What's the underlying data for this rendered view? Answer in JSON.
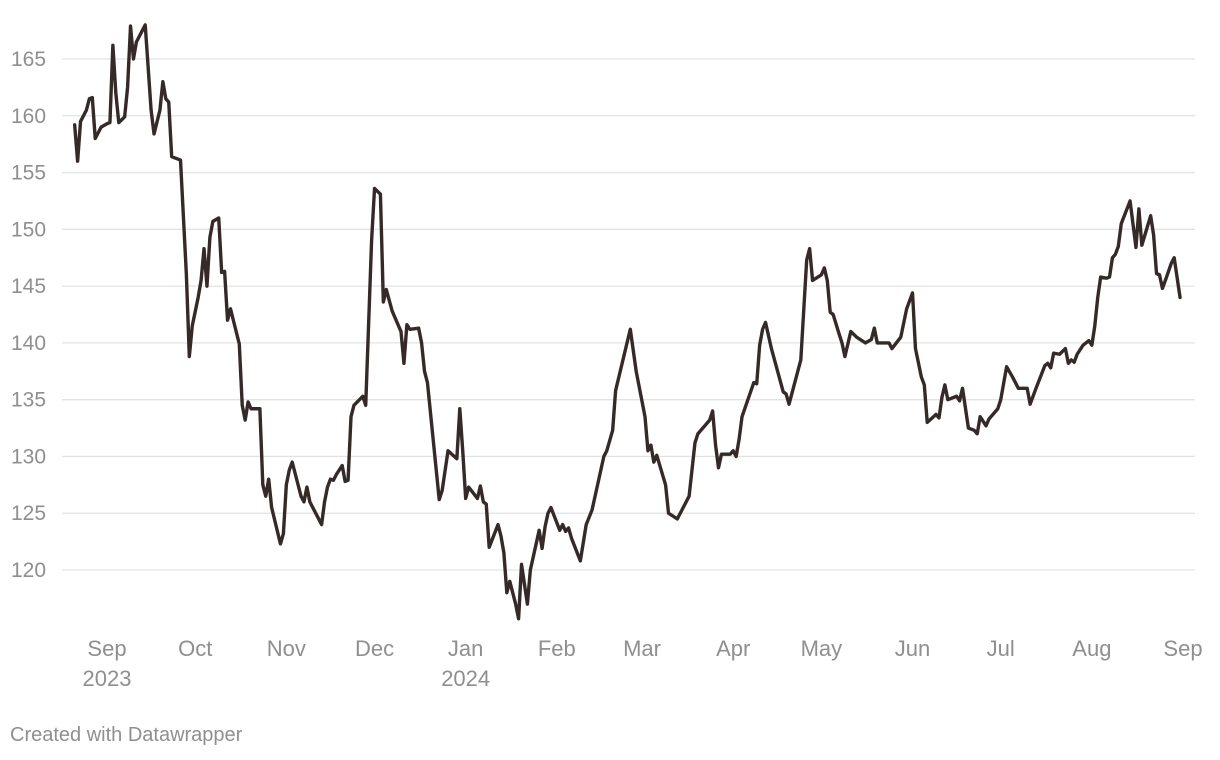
{
  "chart_data": {
    "type": "line",
    "title": "",
    "xlabel": "",
    "ylabel": "",
    "x_range": [
      "2023-08-21",
      "2024-08-30"
    ],
    "ylim": [
      115,
      168
    ],
    "y_ticks": [
      120,
      125,
      130,
      135,
      140,
      145,
      150,
      155,
      160,
      165
    ],
    "x_ticks": [
      {
        "date": "2023-09-01",
        "label": "Sep",
        "year": "2023"
      },
      {
        "date": "2023-10-01",
        "label": "Oct",
        "year": ""
      },
      {
        "date": "2023-11-01",
        "label": "Nov",
        "year": ""
      },
      {
        "date": "2023-12-01",
        "label": "Dec",
        "year": ""
      },
      {
        "date": "2024-01-01",
        "label": "Jan",
        "year": "2024"
      },
      {
        "date": "2024-02-01",
        "label": "Feb",
        "year": ""
      },
      {
        "date": "2024-03-01",
        "label": "Mar",
        "year": ""
      },
      {
        "date": "2024-04-01",
        "label": "Apr",
        "year": ""
      },
      {
        "date": "2024-05-01",
        "label": "May",
        "year": ""
      },
      {
        "date": "2024-06-01",
        "label": "Jun",
        "year": ""
      },
      {
        "date": "2024-07-01",
        "label": "Jul",
        "year": ""
      },
      {
        "date": "2024-08-01",
        "label": "Aug",
        "year": ""
      },
      {
        "date": "2024-09-01",
        "label": "Sep",
        "year": ""
      }
    ],
    "grid": true,
    "series": [
      {
        "color": "#352a27",
        "points": [
          [
            "2023-08-21",
            159.2
          ],
          [
            "2023-08-22",
            156.0
          ],
          [
            "2023-08-23",
            159.5
          ],
          [
            "2023-08-25",
            160.5
          ],
          [
            "2023-08-26",
            161.5
          ],
          [
            "2023-08-27",
            161.6
          ],
          [
            "2023-08-28",
            158.0
          ],
          [
            "2023-08-30",
            159.0
          ],
          [
            "2023-09-01",
            159.3
          ],
          [
            "2023-09-02",
            159.4
          ],
          [
            "2023-09-03",
            166.2
          ],
          [
            "2023-09-04",
            162.0
          ],
          [
            "2023-09-05",
            159.4
          ],
          [
            "2023-09-07",
            159.9
          ],
          [
            "2023-09-08",
            162.5
          ],
          [
            "2023-09-09",
            167.9
          ],
          [
            "2023-09-10",
            165.0
          ],
          [
            "2023-09-11",
            166.5
          ],
          [
            "2023-09-14",
            168.0
          ],
          [
            "2023-09-16",
            160.5
          ],
          [
            "2023-09-17",
            158.4
          ],
          [
            "2023-09-19",
            160.5
          ],
          [
            "2023-09-20",
            163.0
          ],
          [
            "2023-09-21",
            161.5
          ],
          [
            "2023-09-22",
            161.2
          ],
          [
            "2023-09-23",
            156.4
          ],
          [
            "2023-09-26",
            156.1
          ],
          [
            "2023-09-28",
            146.0
          ],
          [
            "2023-09-29",
            138.8
          ],
          [
            "2023-09-30",
            141.5
          ],
          [
            "2023-10-02",
            144.0
          ],
          [
            "2023-10-03",
            145.5
          ],
          [
            "2023-10-04",
            148.3
          ],
          [
            "2023-10-05",
            145.0
          ],
          [
            "2023-10-06",
            149.3
          ],
          [
            "2023-10-07",
            150.7
          ],
          [
            "2023-10-09",
            151.0
          ],
          [
            "2023-10-10",
            146.2
          ],
          [
            "2023-10-11",
            146.3
          ],
          [
            "2023-10-12",
            142.0
          ],
          [
            "2023-10-13",
            143.0
          ],
          [
            "2023-10-16",
            139.9
          ],
          [
            "2023-10-17",
            134.5
          ],
          [
            "2023-10-18",
            133.2
          ],
          [
            "2023-10-19",
            134.8
          ],
          [
            "2023-10-20",
            134.2
          ],
          [
            "2023-10-23",
            134.2
          ],
          [
            "2023-10-24",
            127.5
          ],
          [
            "2023-10-25",
            126.5
          ],
          [
            "2023-10-26",
            128.0
          ],
          [
            "2023-10-27",
            125.5
          ],
          [
            "2023-10-30",
            122.3
          ],
          [
            "2023-10-31",
            123.2
          ],
          [
            "2023-11-01",
            127.5
          ],
          [
            "2023-11-02",
            128.8
          ],
          [
            "2023-11-03",
            129.5
          ],
          [
            "2023-11-06",
            126.5
          ],
          [
            "2023-11-07",
            126.0
          ],
          [
            "2023-11-08",
            127.3
          ],
          [
            "2023-11-09",
            126.0
          ],
          [
            "2023-11-13",
            124.0
          ],
          [
            "2023-11-14",
            126.0
          ],
          [
            "2023-11-15",
            127.3
          ],
          [
            "2023-11-16",
            128.0
          ],
          [
            "2023-11-17",
            127.9
          ],
          [
            "2023-11-18",
            128.4
          ],
          [
            "2023-11-20",
            129.2
          ],
          [
            "2023-11-21",
            127.8
          ],
          [
            "2023-11-22",
            127.9
          ],
          [
            "2023-11-23",
            133.5
          ],
          [
            "2023-11-24",
            134.5
          ],
          [
            "2023-11-27",
            135.3
          ],
          [
            "2023-11-28",
            134.5
          ],
          [
            "2023-11-30",
            149.0
          ],
          [
            "2023-12-01",
            153.6
          ],
          [
            "2023-12-03",
            153.1
          ],
          [
            "2023-12-04",
            143.6
          ],
          [
            "2023-12-05",
            144.7
          ],
          [
            "2023-12-07",
            142.8
          ],
          [
            "2023-12-10",
            141.0
          ],
          [
            "2023-12-11",
            138.2
          ],
          [
            "2023-12-12",
            141.6
          ],
          [
            "2023-12-13",
            141.2
          ],
          [
            "2023-12-16",
            141.3
          ],
          [
            "2023-12-17",
            140.0
          ],
          [
            "2023-12-18",
            137.5
          ],
          [
            "2023-12-19",
            136.5
          ],
          [
            "2023-12-23",
            126.2
          ],
          [
            "2023-12-24",
            127.0
          ],
          [
            "2023-12-26",
            130.5
          ],
          [
            "2023-12-29",
            129.8
          ],
          [
            "2023-12-30",
            134.2
          ],
          [
            "2023-12-31",
            130.5
          ],
          [
            "2024-01-01",
            126.3
          ],
          [
            "2024-01-02",
            127.3
          ],
          [
            "2024-01-05",
            126.3
          ],
          [
            "2024-01-06",
            127.4
          ],
          [
            "2024-01-07",
            126.0
          ],
          [
            "2024-01-08",
            125.8
          ],
          [
            "2024-01-09",
            122.0
          ],
          [
            "2024-01-12",
            124.0
          ],
          [
            "2024-01-13",
            123.0
          ],
          [
            "2024-01-14",
            121.5
          ],
          [
            "2024-01-15",
            118.0
          ],
          [
            "2024-01-16",
            119.0
          ],
          [
            "2024-01-18",
            117.0
          ],
          [
            "2024-01-19",
            115.7
          ],
          [
            "2024-01-20",
            120.5
          ],
          [
            "2024-01-22",
            117.0
          ],
          [
            "2024-01-23",
            120.0
          ],
          [
            "2024-01-26",
            123.5
          ],
          [
            "2024-01-27",
            121.9
          ],
          [
            "2024-01-28",
            123.8
          ],
          [
            "2024-01-29",
            125.0
          ],
          [
            "2024-01-30",
            125.5
          ],
          [
            "2024-02-02",
            123.5
          ],
          [
            "2024-02-03",
            124.0
          ],
          [
            "2024-02-04",
            123.4
          ],
          [
            "2024-02-05",
            123.7
          ],
          [
            "2024-02-06",
            122.8
          ],
          [
            "2024-02-09",
            120.8
          ],
          [
            "2024-02-11",
            124.0
          ],
          [
            "2024-02-13",
            125.3
          ],
          [
            "2024-02-17",
            130.0
          ],
          [
            "2024-02-18",
            130.5
          ],
          [
            "2024-02-20",
            132.3
          ],
          [
            "2024-02-21",
            135.8
          ],
          [
            "2024-02-26",
            141.2
          ],
          [
            "2024-02-28",
            137.5
          ],
          [
            "2024-03-02",
            133.5
          ],
          [
            "2024-03-03",
            130.5
          ],
          [
            "2024-03-04",
            131.0
          ],
          [
            "2024-03-05",
            129.5
          ],
          [
            "2024-03-06",
            130.1
          ],
          [
            "2024-03-09",
            127.5
          ],
          [
            "2024-03-10",
            125.0
          ],
          [
            "2024-03-13",
            124.5
          ],
          [
            "2024-03-17",
            126.5
          ],
          [
            "2024-03-19",
            131.2
          ],
          [
            "2024-03-20",
            132.0
          ],
          [
            "2024-03-24",
            133.2
          ],
          [
            "2024-03-25",
            134.0
          ],
          [
            "2024-03-26",
            131.0
          ],
          [
            "2024-03-27",
            129.0
          ],
          [
            "2024-03-28",
            130.2
          ],
          [
            "2024-03-31",
            130.2
          ],
          [
            "2024-04-01",
            130.5
          ],
          [
            "2024-04-02",
            130.0
          ],
          [
            "2024-04-03",
            131.5
          ],
          [
            "2024-04-04",
            133.5
          ],
          [
            "2024-04-08",
            136.5
          ],
          [
            "2024-04-09",
            136.4
          ],
          [
            "2024-04-10",
            139.8
          ],
          [
            "2024-04-11",
            141.2
          ],
          [
            "2024-04-12",
            141.8
          ],
          [
            "2024-04-14",
            139.5
          ],
          [
            "2024-04-18",
            135.7
          ],
          [
            "2024-04-19",
            135.5
          ],
          [
            "2024-04-20",
            134.6
          ],
          [
            "2024-04-24",
            138.5
          ],
          [
            "2024-04-26",
            147.3
          ],
          [
            "2024-04-27",
            148.3
          ],
          [
            "2024-04-28",
            145.5
          ],
          [
            "2024-05-01",
            146.0
          ],
          [
            "2024-05-02",
            146.6
          ],
          [
            "2024-05-03",
            145.5
          ],
          [
            "2024-05-04",
            142.7
          ],
          [
            "2024-05-05",
            142.5
          ],
          [
            "2024-05-07",
            140.8
          ],
          [
            "2024-05-08",
            140.0
          ],
          [
            "2024-05-09",
            138.8
          ],
          [
            "2024-05-11",
            141.0
          ],
          [
            "2024-05-13",
            140.5
          ],
          [
            "2024-05-16",
            140.0
          ],
          [
            "2024-05-18",
            140.3
          ],
          [
            "2024-05-19",
            141.3
          ],
          [
            "2024-05-20",
            140.0
          ],
          [
            "2024-05-24",
            140.0
          ],
          [
            "2024-05-25",
            139.5
          ],
          [
            "2024-05-28",
            140.5
          ],
          [
            "2024-05-30",
            143.0
          ],
          [
            "2024-06-01",
            144.4
          ],
          [
            "2024-06-02",
            139.5
          ],
          [
            "2024-06-04",
            137.0
          ],
          [
            "2024-06-05",
            136.3
          ],
          [
            "2024-06-06",
            133.0
          ],
          [
            "2024-06-09",
            133.7
          ],
          [
            "2024-06-10",
            133.4
          ],
          [
            "2024-06-11",
            135.2
          ],
          [
            "2024-06-12",
            136.3
          ],
          [
            "2024-06-13",
            135.0
          ],
          [
            "2024-06-16",
            135.3
          ],
          [
            "2024-06-17",
            134.9
          ],
          [
            "2024-06-18",
            136.0
          ],
          [
            "2024-06-20",
            132.5
          ],
          [
            "2024-06-22",
            132.3
          ],
          [
            "2024-06-23",
            132.0
          ],
          [
            "2024-06-24",
            133.5
          ],
          [
            "2024-06-26",
            132.7
          ],
          [
            "2024-06-27",
            133.3
          ],
          [
            "2024-06-30",
            134.2
          ],
          [
            "2024-07-01",
            135.0
          ],
          [
            "2024-07-03",
            137.9
          ],
          [
            "2024-07-05",
            137.0
          ],
          [
            "2024-07-07",
            136.0
          ],
          [
            "2024-07-10",
            136.0
          ],
          [
            "2024-07-11",
            134.6
          ],
          [
            "2024-07-13",
            136.0
          ],
          [
            "2024-07-16",
            138.0
          ],
          [
            "2024-07-17",
            138.2
          ],
          [
            "2024-07-18",
            137.8
          ],
          [
            "2024-07-19",
            139.1
          ],
          [
            "2024-07-21",
            139.0
          ],
          [
            "2024-07-23",
            139.5
          ],
          [
            "2024-07-24",
            138.2
          ],
          [
            "2024-07-25",
            138.5
          ],
          [
            "2024-07-26",
            138.3
          ],
          [
            "2024-07-27",
            139.0
          ],
          [
            "2024-07-29",
            139.8
          ],
          [
            "2024-07-31",
            140.2
          ],
          [
            "2024-08-01",
            139.8
          ],
          [
            "2024-08-02",
            141.5
          ],
          [
            "2024-08-03",
            144.0
          ],
          [
            "2024-08-04",
            145.8
          ],
          [
            "2024-08-06",
            145.7
          ],
          [
            "2024-08-07",
            145.8
          ],
          [
            "2024-08-08",
            147.5
          ],
          [
            "2024-08-09",
            147.8
          ],
          [
            "2024-08-10",
            148.5
          ],
          [
            "2024-08-11",
            150.5
          ],
          [
            "2024-08-14",
            152.5
          ],
          [
            "2024-08-16",
            148.4
          ],
          [
            "2024-08-17",
            151.8
          ],
          [
            "2024-08-18",
            148.6
          ],
          [
            "2024-08-21",
            151.2
          ],
          [
            "2024-08-22",
            149.5
          ],
          [
            "2024-08-23",
            146.1
          ],
          [
            "2024-08-24",
            146.0
          ],
          [
            "2024-08-25",
            144.8
          ],
          [
            "2024-08-26",
            145.5
          ],
          [
            "2024-08-28",
            147.0
          ],
          [
            "2024-08-29",
            147.5
          ],
          [
            "2024-08-31",
            144.0
          ]
        ]
      }
    ]
  },
  "footer": {
    "credit": "Created with Datawrapper"
  }
}
